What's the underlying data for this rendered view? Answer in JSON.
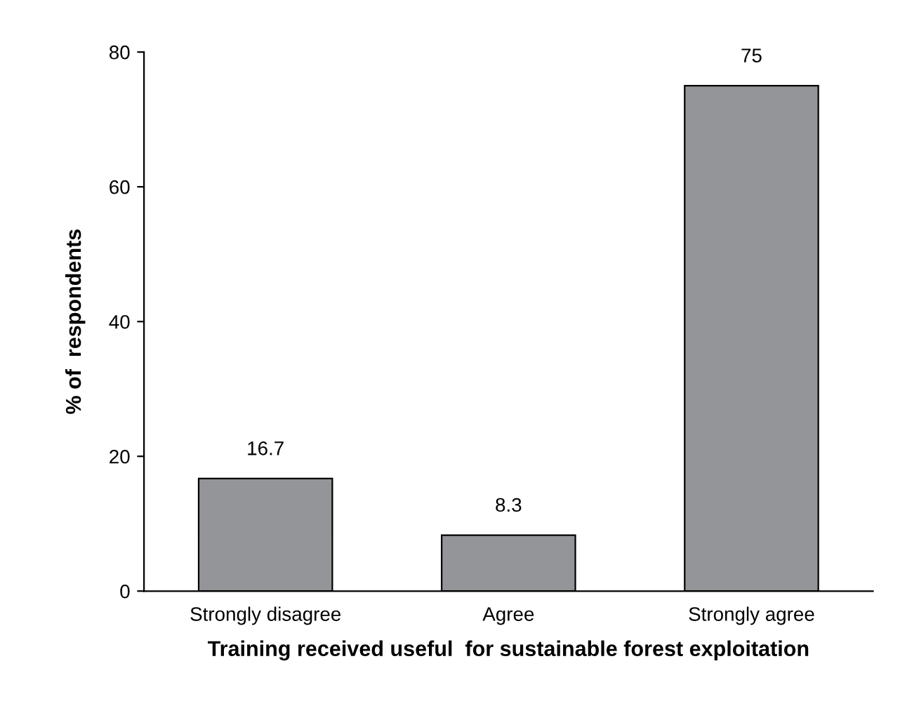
{
  "chart_data": {
    "type": "bar",
    "xlabel": "Training received useful  for sustainable forest exploitation",
    "ylabel": "% of  respondents",
    "categories": [
      "Strongly disagree",
      "Agree",
      "Strongly agree"
    ],
    "values": [
      16.7,
      8.3,
      75
    ],
    "color": "#939598",
    "ylim": [
      0,
      80
    ],
    "yticks": [
      0,
      20,
      40,
      60,
      80
    ],
    "data_labels": true,
    "grid": false,
    "legend": false
  }
}
